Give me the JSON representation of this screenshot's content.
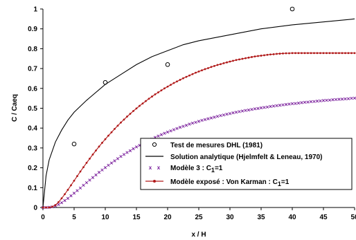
{
  "chart_data": {
    "type": "line",
    "xlabel": "x / H",
    "ylabel": "C / Caeq",
    "xlim": [
      0,
      50
    ],
    "ylim": [
      0,
      1
    ],
    "x_ticks": [
      "0",
      "5",
      "10",
      "15",
      "20",
      "25",
      "30",
      "35",
      "40",
      "45",
      "50"
    ],
    "y_ticks": [
      "0",
      "0.1",
      "0.2",
      "0.3",
      "0.4",
      "0.5",
      "0.6",
      "0.7",
      "0.8",
      "0.9",
      "1"
    ],
    "grid": false,
    "legend_position": "bottom-right",
    "series": [
      {
        "name": "Test de mesures DHL (1981)",
        "style": "open-circle-markers",
        "color": "#000000",
        "x": [
          5,
          10,
          20,
          40
        ],
        "y": [
          0.32,
          0.63,
          0.72,
          1.0
        ]
      },
      {
        "name": "Solution analytique (Hjelmfelt & Leneau, 1970)",
        "style": "line",
        "color": "#000000",
        "x": [
          0,
          0.5,
          1,
          2,
          3,
          4,
          5,
          7,
          10,
          12.5,
          15,
          17.5,
          20,
          22.5,
          25,
          30,
          35,
          40,
          45,
          50
        ],
        "y": [
          0,
          0.16,
          0.24,
          0.33,
          0.39,
          0.44,
          0.48,
          0.54,
          0.62,
          0.67,
          0.72,
          0.76,
          0.79,
          0.82,
          0.84,
          0.87,
          0.9,
          0.92,
          0.935,
          0.95
        ]
      },
      {
        "name": "Modèle 3 :",
        "name_formula": "C",
        "name_sub": "1",
        "name_value": "=1",
        "style": "x-markers",
        "color": "#7a1f9c",
        "x": [
          0,
          0.5,
          1,
          1.5,
          2,
          2.5,
          3,
          3.5,
          4,
          4.5,
          5,
          5.5,
          6,
          6.5,
          7,
          7.5,
          8,
          8.5,
          9,
          9.5,
          10,
          10.5,
          11,
          11.5,
          12,
          12.5,
          13,
          13.5,
          14,
          14.5,
          15,
          15.5,
          16,
          16.5,
          17,
          17.5,
          18,
          18.5,
          19,
          19.5,
          20,
          20.5,
          21,
          21.5,
          22,
          22.5,
          23,
          23.5,
          24,
          24.5,
          25,
          25.5,
          26,
          26.5,
          27,
          27.5,
          28,
          28.5,
          29,
          29.5,
          30,
          30.5,
          31,
          31.5,
          32,
          32.5,
          33,
          33.5,
          34,
          34.5,
          35,
          35.5,
          36,
          36.5,
          37,
          37.5,
          38,
          38.5,
          39,
          39.5,
          40,
          40.5,
          41,
          41.5,
          42,
          42.5,
          43,
          43.5,
          44,
          44.5,
          45,
          45.5,
          46,
          46.5,
          47,
          47.5,
          48,
          48.5,
          49,
          49.5,
          50
        ],
        "y": [
          0.0,
          0.0,
          0.001,
          0.003,
          0.008,
          0.015,
          0.024,
          0.035,
          0.046,
          0.059,
          0.072,
          0.085,
          0.098,
          0.112,
          0.125,
          0.138,
          0.151,
          0.164,
          0.177,
          0.189,
          0.201,
          0.213,
          0.224,
          0.235,
          0.246,
          0.257,
          0.267,
          0.277,
          0.286,
          0.296,
          0.305,
          0.313,
          0.322,
          0.33,
          0.338,
          0.345,
          0.353,
          0.36,
          0.367,
          0.374,
          0.38,
          0.386,
          0.392,
          0.398,
          0.404,
          0.409,
          0.414,
          0.42,
          0.425,
          0.429,
          0.434,
          0.439,
          0.443,
          0.447,
          0.451,
          0.455,
          0.459,
          0.463,
          0.466,
          0.47,
          0.473,
          0.477,
          0.48,
          0.483,
          0.486,
          0.489,
          0.491,
          0.494,
          0.497,
          0.499,
          0.502,
          0.504,
          0.506,
          0.509,
          0.511,
          0.513,
          0.515,
          0.517,
          0.519,
          0.521,
          0.523,
          0.524,
          0.526,
          0.528,
          0.53,
          0.531,
          0.533,
          0.534,
          0.536,
          0.537,
          0.539,
          0.54,
          0.541,
          0.543,
          0.544,
          0.545,
          0.546,
          0.547,
          0.548,
          0.55,
          0.551
        ]
      },
      {
        "name": "Modèle exposé : Von Karman :",
        "name_formula": "C",
        "name_sub": "1",
        "name_value": "=1",
        "style": "line-with-dot-markers",
        "color": "#b01818",
        "x": [
          0,
          0.5,
          1,
          1.5,
          2,
          2.5,
          3,
          3.5,
          4,
          4.5,
          5,
          5.5,
          6,
          6.5,
          7,
          7.5,
          8,
          8.5,
          9,
          9.5,
          10,
          10.5,
          11,
          11.5,
          12,
          12.5,
          13,
          13.5,
          14,
          14.5,
          15,
          15.5,
          16,
          16.5,
          17,
          17.5,
          18,
          18.5,
          19,
          19.5,
          20,
          20.5,
          21,
          21.5,
          22,
          22.5,
          23,
          23.5,
          24,
          24.5,
          25,
          25.5,
          26,
          26.5,
          27,
          27.5,
          28,
          28.5,
          29,
          29.5,
          30,
          30.5,
          31,
          31.5,
          32,
          32.5,
          33,
          33.5,
          34,
          34.5,
          35,
          35.5,
          36,
          36.5,
          37,
          37.5,
          38,
          38.5,
          39,
          39.5,
          40,
          40.5,
          41,
          41.5,
          42,
          42.5,
          43,
          43.5,
          44,
          44.5,
          45,
          45.5,
          46,
          46.5,
          47,
          47.5,
          48,
          48.5,
          49,
          49.5,
          50
        ],
        "y": [
          0.0,
          0.0,
          0.0,
          0.004,
          0.012,
          0.027,
          0.046,
          0.067,
          0.089,
          0.112,
          0.135,
          0.158,
          0.181,
          0.203,
          0.225,
          0.246,
          0.267,
          0.287,
          0.307,
          0.326,
          0.344,
          0.362,
          0.379,
          0.396,
          0.412,
          0.428,
          0.443,
          0.458,
          0.472,
          0.486,
          0.499,
          0.512,
          0.524,
          0.536,
          0.548,
          0.559,
          0.57,
          0.58,
          0.59,
          0.6,
          0.609,
          0.618,
          0.627,
          0.635,
          0.643,
          0.651,
          0.658,
          0.665,
          0.672,
          0.679,
          0.685,
          0.691,
          0.697,
          0.702,
          0.708,
          0.713,
          0.718,
          0.722,
          0.727,
          0.731,
          0.735,
          0.739,
          0.743,
          0.746,
          0.749,
          0.752,
          0.755,
          0.758,
          0.761,
          0.763,
          0.765,
          0.767,
          0.769,
          0.771,
          0.772,
          0.774,
          0.775,
          0.776,
          0.777,
          0.777,
          0.778,
          0.778,
          0.778,
          0.778,
          0.778,
          0.778,
          0.778,
          0.778,
          0.778,
          0.778,
          0.778,
          0.778,
          0.778,
          0.778,
          0.778,
          0.778,
          0.778,
          0.778,
          0.778,
          0.778,
          0.778
        ]
      }
    ]
  }
}
